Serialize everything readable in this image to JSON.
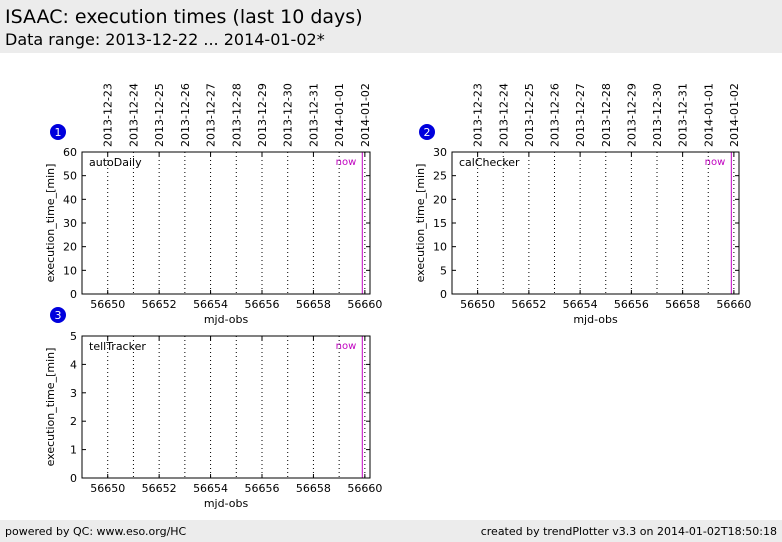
{
  "header": {
    "title": "ISAAC: execution times (last 10 days)",
    "subtitle": "Data range: 2013-12-22 ... 2014-01-02*"
  },
  "footer": {
    "left": "powered by QC: www.eso.org/HC",
    "right": "created by trendPlotter v3.3 on 2014-01-02T18:50:18"
  },
  "colors": {
    "now_line": "#c000c0",
    "badge": "#0000dd",
    "header_bg": "#ececec"
  },
  "chart_data": [
    {
      "type": "scatter",
      "badge": "1",
      "panel_label": "autoDaily",
      "now_label": "now",
      "xlabel": "mjd-obs",
      "ylabel": "execution_time_[min]",
      "xlim": [
        56649,
        56660.2
      ],
      "ylim": [
        0,
        60
      ],
      "xticks": [
        56650,
        56652,
        56654,
        56656,
        56658,
        56660
      ],
      "yticks": [
        0,
        10,
        20,
        30,
        40,
        50,
        60
      ],
      "date_lines": [
        56650,
        56651,
        56652,
        56653,
        56654,
        56655,
        56656,
        56657,
        56658,
        56659,
        56660
      ],
      "date_labels": [
        "2013-12-23",
        "2013-12-24",
        "2013-12-25",
        "2013-12-26",
        "2013-12-27",
        "2013-12-28",
        "2013-12-29",
        "2013-12-30",
        "2013-12-31",
        "2014-01-01",
        "2014-01-02"
      ],
      "now": 56659.9,
      "series": [
        {
          "values": []
        }
      ]
    },
    {
      "type": "scatter",
      "badge": "2",
      "panel_label": "calChecker",
      "now_label": "now",
      "xlabel": "mjd-obs",
      "ylabel": "execution_time_[min]",
      "xlim": [
        56649,
        56660.2
      ],
      "ylim": [
        0,
        30
      ],
      "xticks": [
        56650,
        56652,
        56654,
        56656,
        56658,
        56660
      ],
      "yticks": [
        0,
        5,
        10,
        15,
        20,
        25,
        30
      ],
      "date_lines": [
        56650,
        56651,
        56652,
        56653,
        56654,
        56655,
        56656,
        56657,
        56658,
        56659,
        56660
      ],
      "date_labels": [
        "2013-12-23",
        "2013-12-24",
        "2013-12-25",
        "2013-12-26",
        "2013-12-27",
        "2013-12-28",
        "2013-12-29",
        "2013-12-30",
        "2013-12-31",
        "2014-01-01",
        "2014-01-02"
      ],
      "now": 56659.9,
      "series": [
        {
          "values": []
        }
      ]
    },
    {
      "type": "scatter",
      "badge": "3",
      "panel_label": "tellTracker",
      "now_label": "now",
      "xlabel": "mjd-obs",
      "ylabel": "execution_time_[min]",
      "xlim": [
        56649,
        56660.2
      ],
      "ylim": [
        0,
        5
      ],
      "xticks": [
        56650,
        56652,
        56654,
        56656,
        56658,
        56660
      ],
      "yticks": [
        0,
        1,
        2,
        3,
        4,
        5
      ],
      "date_lines": [
        56650,
        56651,
        56652,
        56653,
        56654,
        56655,
        56656,
        56657,
        56658,
        56659,
        56660
      ],
      "date_labels": [],
      "now": 56659.9,
      "series": [
        {
          "values": []
        }
      ]
    }
  ]
}
